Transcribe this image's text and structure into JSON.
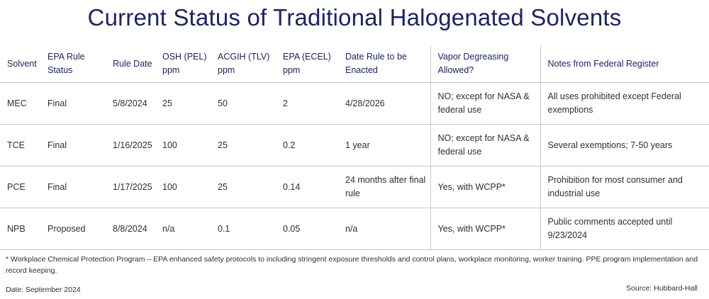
{
  "title": "Current Status of Traditional Halogenated Solvents",
  "table": {
    "headers": [
      "Solvent",
      "EPA Rule Status",
      "Rule Date",
      "OSH (PEL) ppm",
      "ACGIH (TLV) ppm",
      "EPA (ECEL) ppm",
      "Date Rule to be Enacted",
      "Vapor Degreasing Allowed?",
      "Notes from Federal Register"
    ],
    "rows": [
      [
        "MEC",
        "Final",
        "5/8/2024",
        "25",
        "50",
        "2",
        "4/28/2026",
        "NO; except for NASA & federal use",
        "All uses prohibited except Federal exemptions"
      ],
      [
        "TCE",
        "Final",
        "1/16/2025",
        "100",
        "25",
        "0.2",
        "1 year",
        "NO; except for NASA & federal use",
        "Several exemptions; 7-50 years"
      ],
      [
        "PCE",
        "Final",
        "1/17/2025",
        "100",
        "25",
        "0.14",
        "24 months after final rule",
        "Yes, with WCPP*",
        "Prohibition for most consumer and industrial use"
      ],
      [
        "NPB",
        "Proposed",
        "8/8/2024",
        "n/a",
        "0.1",
        "0.05",
        "n/a",
        "Yes, with WCPP*",
        "Public comments accepted until 9/23/2024"
      ]
    ]
  },
  "footnote": "* Workplace Chemical Protection Program – EPA enhanced safety protocols to including stringent exposure thresholds and control plans, workplace monitoring, worker training. PPE program implementation and record keeping.",
  "date": "Date: September 2024",
  "source": "Source: Hubbard-Hall"
}
